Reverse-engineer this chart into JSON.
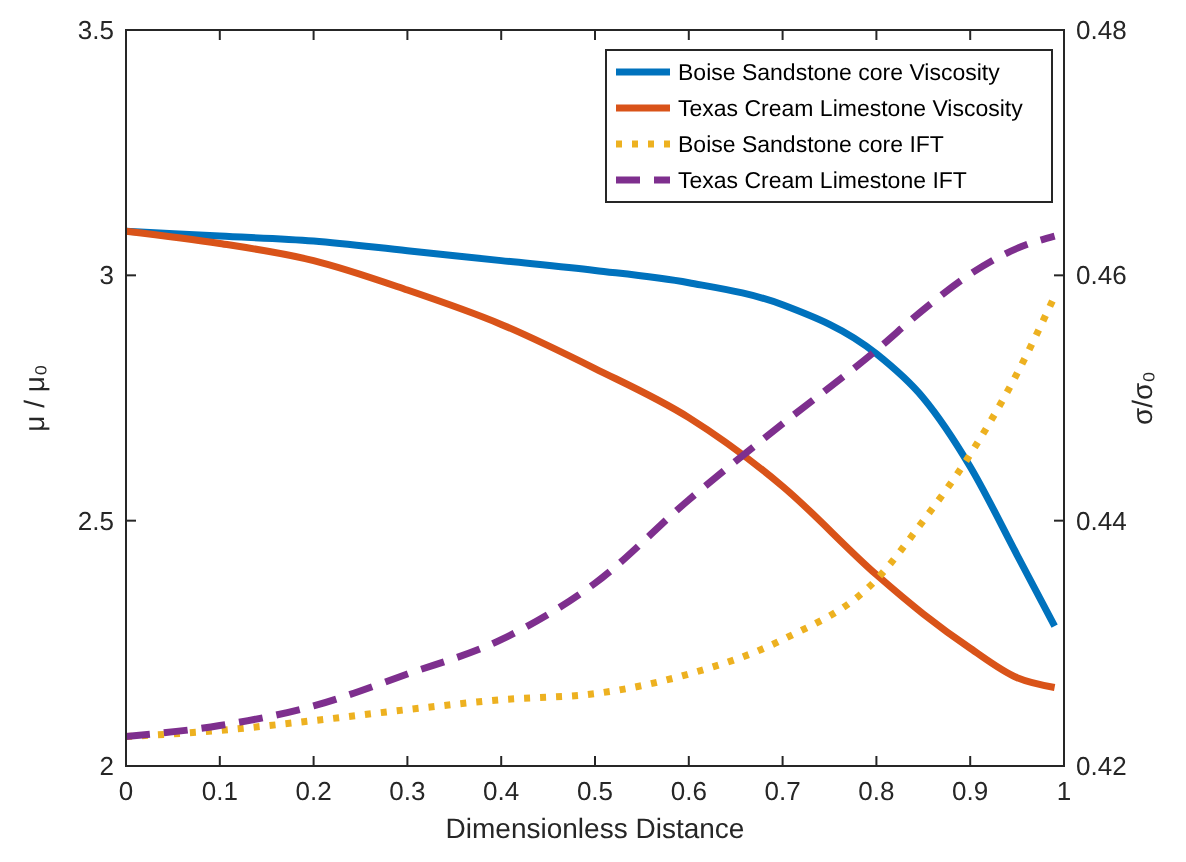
{
  "chart_data": {
    "type": "line",
    "xlabel": "Dimensionless Distance",
    "ylabel": "μ / μ₀",
    "y2label": "σ/σ₀",
    "xlim": [
      0,
      1
    ],
    "xticks": [
      0,
      0.1,
      0.2,
      0.3,
      0.4,
      0.5,
      0.6,
      0.7,
      0.8,
      0.9,
      1
    ],
    "ylim": [
      2,
      3.5
    ],
    "yticks": [
      2,
      2.5,
      3,
      3.5
    ],
    "y2lim": [
      0.42,
      0.48
    ],
    "y2ticks": [
      0.42,
      0.44,
      0.46,
      0.48
    ],
    "legend": "top right",
    "x": [
      0,
      0.1,
      0.2,
      0.3,
      0.4,
      0.5,
      0.6,
      0.7,
      0.8,
      0.85,
      0.9,
      0.95,
      0.99
    ],
    "series": [
      {
        "name": "Boise Sandstone core Viscosity",
        "color": "#0072bd",
        "line_style": "solid",
        "values": [
          3.09,
          3.08,
          3.07,
          3.05,
          3.03,
          3.01,
          2.985,
          2.94,
          2.84,
          2.75,
          2.61,
          2.43,
          2.285
        ]
      },
      {
        "name": "Texas Cream Limestone Viscosity",
        "color": "#d95319",
        "line_style": "solid",
        "values": [
          3.09,
          3.065,
          3.03,
          2.97,
          2.9,
          2.81,
          2.71,
          2.57,
          2.39,
          2.31,
          2.24,
          2.18,
          2.16
        ]
      },
      {
        "name": "Boise Sandstone core IFT",
        "color": "#edb120",
        "line_style": "dotted",
        "axis": "y2",
        "values": [
          0.4224,
          0.4229,
          0.4237,
          0.4246,
          0.4254,
          0.4259,
          0.4275,
          0.4303,
          0.4352,
          0.44,
          0.4454,
          0.452,
          0.4583
        ]
      },
      {
        "name": "Texas Cream Limestone IFT",
        "color": "#7e2f8e",
        "line_style": "dashed",
        "axis": "y2",
        "values": [
          0.4224,
          0.4233,
          0.4249,
          0.4275,
          0.4303,
          0.4349,
          0.4417,
          0.4479,
          0.4539,
          0.4572,
          0.4601,
          0.4622,
          0.4632
        ]
      }
    ]
  }
}
